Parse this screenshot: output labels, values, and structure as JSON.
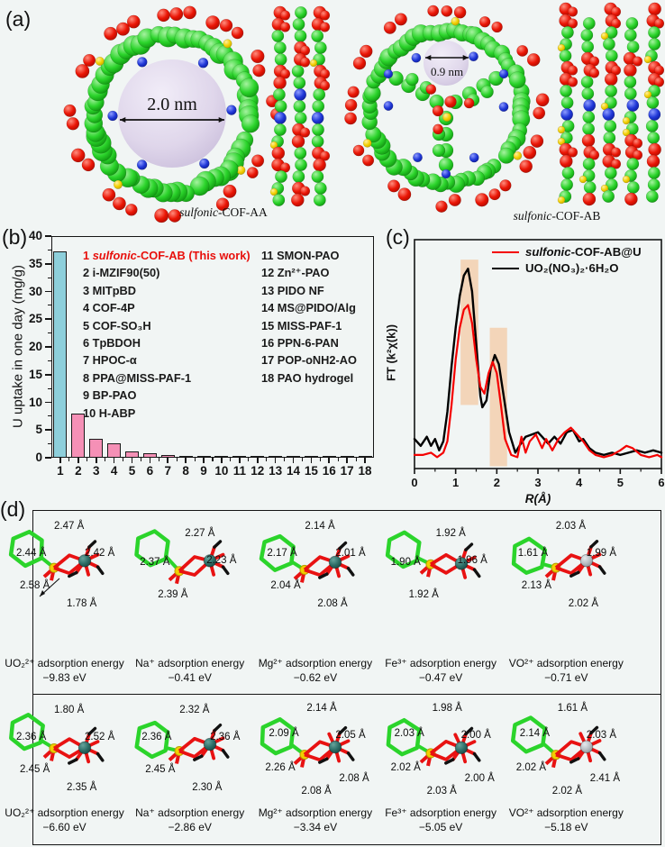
{
  "panel_a": {
    "label": "(a)",
    "structures": [
      {
        "pore_label": "2.0 nm",
        "caption_italic": "sulfonic",
        "caption_rest": "-COF-AA"
      },
      {
        "pore_label": "0.9 nm",
        "caption_italic": "sulfonic",
        "caption_rest": "-COF-AB"
      }
    ]
  },
  "panel_b": {
    "label": "(b)"
  },
  "panel_c": {
    "label": "(c)"
  },
  "colors": {
    "bar_highlight": "#8ecfdb",
    "bar_default": "#f590b6",
    "highlight_band": "#f3cfae",
    "series_red": "#f40000",
    "series_black": "#000000",
    "atom_green": "#2bd42b",
    "atom_red": "#e81212",
    "atom_blue": "#2038d8",
    "atom_yellow": "#f2cf00",
    "metal_teal": "#2c6e67",
    "metal_gray": "#b7bdc2"
  },
  "chart_data": [
    {
      "type": "bar",
      "title": "",
      "xlabel": "",
      "ylabel": "U uptake in one day (mg/g)",
      "categories": [
        "1",
        "2",
        "3",
        "4",
        "5",
        "6",
        "7",
        "8",
        "9",
        "10",
        "11",
        "12",
        "13",
        "14",
        "15",
        "16",
        "17",
        "18"
      ],
      "values": [
        37.2,
        8.0,
        3.4,
        2.6,
        1.15,
        0.75,
        0.45,
        0.35,
        0.22,
        0.25,
        0.2,
        0.18,
        0.16,
        0.15,
        0.13,
        0.12,
        0.1,
        0.1
      ],
      "ylim": [
        0,
        40
      ],
      "yticks": [
        0,
        5,
        10,
        15,
        20,
        25,
        30,
        35,
        40
      ],
      "grid": false,
      "legend_position": "inside top-left, two columns",
      "legend1": {
        "num": "1 ",
        "italic": "sulfonic",
        "rest": "-COF-AB (This work)"
      },
      "legend_col1": [
        "2 i-MZIF90(50)",
        "3 MITpBD",
        "4 COF-4P",
        "5 COF-SO₃H",
        "6 TpBDOH",
        "7 HPOC-α",
        "8 PPA@MISS-PAF-1",
        "9 BP-PAO",
        "10 H-ABP"
      ],
      "legend_col2": [
        "11 SMON-PAO",
        "12 Zn²⁺-PAO",
        "13 PIDO NF",
        "14 MS@PIDO/Alg",
        "15 MISS-PAF-1",
        "16 PPN-6-PAN",
        "17 POP-oNH2-AO",
        "18 PAO hydrogel"
      ]
    },
    {
      "type": "line",
      "title": "",
      "xlabel": "R(Å)",
      "ylabel": "FT (k²χ(k))",
      "xlim": [
        0,
        6
      ],
      "xticks": [
        0,
        1,
        2,
        3,
        4,
        5,
        6
      ],
      "grid": false,
      "legend_position": "top-right inside",
      "highlight_bands": [
        {
          "x0": 1.12,
          "x1": 1.55,
          "y0": 0.28,
          "y1": 0.92
        },
        {
          "x0": 1.83,
          "x1": 2.25,
          "y0": 0.01,
          "y1": 0.62
        }
      ],
      "series": [
        {
          "name": "sulfonic-COF-AB@U",
          "label_italic": "sulfonic",
          "label_rest": "-COF-AB@U",
          "color": "#f40000",
          "x": [
            0,
            0.2,
            0.4,
            0.55,
            0.7,
            0.8,
            0.9,
            1.0,
            1.1,
            1.2,
            1.3,
            1.4,
            1.5,
            1.6,
            1.7,
            1.8,
            1.9,
            2.0,
            2.1,
            2.2,
            2.35,
            2.5,
            2.6,
            2.7,
            2.8,
            2.95,
            3.1,
            3.2,
            3.35,
            3.5,
            3.65,
            3.8,
            3.95,
            4.1,
            4.25,
            4.4,
            4.6,
            4.8,
            5.0,
            5.15,
            5.3,
            5.5,
            5.7,
            5.9,
            6.0
          ],
          "y": [
            0.06,
            0.06,
            0.07,
            0.05,
            0.07,
            0.12,
            0.28,
            0.48,
            0.62,
            0.7,
            0.72,
            0.64,
            0.48,
            0.36,
            0.33,
            0.42,
            0.47,
            0.42,
            0.28,
            0.13,
            0.06,
            0.05,
            0.14,
            0.07,
            0.12,
            0.15,
            0.09,
            0.13,
            0.08,
            0.13,
            0.16,
            0.18,
            0.15,
            0.12,
            0.08,
            0.06,
            0.05,
            0.06,
            0.08,
            0.1,
            0.09,
            0.06,
            0.05,
            0.06,
            0.05
          ]
        },
        {
          "name": "UO₂(NO₃)₂·6H₂O",
          "label": "UO₂(NO₃)₂·6H₂O",
          "color": "#000000",
          "x": [
            0,
            0.15,
            0.3,
            0.4,
            0.5,
            0.6,
            0.7,
            0.8,
            0.9,
            1.0,
            1.1,
            1.2,
            1.3,
            1.4,
            1.5,
            1.6,
            1.65,
            1.75,
            1.85,
            1.95,
            2.05,
            2.15,
            2.3,
            2.45,
            2.55,
            2.7,
            2.85,
            3.0,
            3.1,
            3.25,
            3.4,
            3.55,
            3.7,
            3.85,
            4.0,
            4.1,
            4.25,
            4.4,
            4.6,
            4.8,
            5.0,
            5.2,
            5.4,
            5.6,
            5.8,
            6.0
          ],
          "y": [
            0.13,
            0.1,
            0.14,
            0.1,
            0.13,
            0.08,
            0.12,
            0.25,
            0.45,
            0.62,
            0.76,
            0.85,
            0.88,
            0.78,
            0.55,
            0.32,
            0.27,
            0.3,
            0.44,
            0.5,
            0.46,
            0.34,
            0.16,
            0.07,
            0.1,
            0.14,
            0.15,
            0.16,
            0.14,
            0.11,
            0.14,
            0.11,
            0.16,
            0.17,
            0.12,
            0.13,
            0.09,
            0.07,
            0.06,
            0.07,
            0.06,
            0.07,
            0.08,
            0.07,
            0.08,
            0.07
          ]
        }
      ]
    }
  ],
  "panel_d": {
    "label": "(d)",
    "caption_suffix": " adsorption energy",
    "rows": [
      {
        "molecules": [
          {
            "ion": "UO₂²⁺",
            "energy": "−9.83 eV",
            "metal": "teal",
            "bonds": [
              "2.47 Å",
              "2.44 Å",
              "2.42 Å",
              "2.58 Å",
              "1.78 Å"
            ]
          },
          {
            "ion": "Na⁺",
            "energy": "−0.41 eV",
            "metal": "teal",
            "bonds": [
              "2.27 Å",
              "2.37 Å",
              "2.23 Å",
              "2.39 Å"
            ]
          },
          {
            "ion": "Mg²⁺",
            "energy": "−0.62 eV",
            "metal": "teal",
            "bonds": [
              "2.14 Å",
              "2.17 Å",
              "2.01 Å",
              "2.04 Å",
              "2.08 Å"
            ]
          },
          {
            "ion": "Fe³⁺",
            "energy": "−0.47 eV",
            "metal": "teal",
            "bonds": [
              "1.92 Å",
              "1.90 Å",
              "1.96 Å",
              "1.92 Å"
            ]
          },
          {
            "ion": "VO²⁺",
            "energy": "−0.71 eV",
            "metal": "gray",
            "bonds": [
              "2.03 Å",
              "1.61 Å",
              "1.99 Å",
              "2.13 Å",
              "2.02 Å"
            ]
          }
        ]
      },
      {
        "molecules": [
          {
            "ion": "UO₂²⁺",
            "energy": "−6.60 eV",
            "metal": "teal",
            "bonds": [
              "1.80 Å",
              "2.36 Å",
              "2.52 Å",
              "2.45 Å",
              "2.35 Å"
            ]
          },
          {
            "ion": "Na⁺",
            "energy": "−2.86 eV",
            "metal": "teal",
            "bonds": [
              "2.32 Å",
              "2.36 Å",
              "2.36 Å",
              "2.45 Å",
              "2.30 Å"
            ]
          },
          {
            "ion": "Mg²⁺",
            "energy": "−3.34 eV",
            "metal": "teal",
            "bonds": [
              "2.14 Å",
              "2.09 Å",
              "2.05 Å",
              "2.26 Å",
              "2.08 Å",
              "2.08 Å"
            ]
          },
          {
            "ion": "Fe³⁺",
            "energy": "−5.05 eV",
            "metal": "teal",
            "bonds": [
              "1.98 Å",
              "2.03 Å",
              "2.00 Å",
              "2.02 Å",
              "2.03 Å",
              "2.00 Å"
            ]
          },
          {
            "ion": "VO²⁺",
            "energy": "−5.18 eV",
            "metal": "gray",
            "bonds": [
              "1.61 Å",
              "2.14 Å",
              "2.03 Å",
              "2.02 Å",
              "2.02 Å",
              "2.41 Å"
            ]
          }
        ]
      }
    ]
  }
}
